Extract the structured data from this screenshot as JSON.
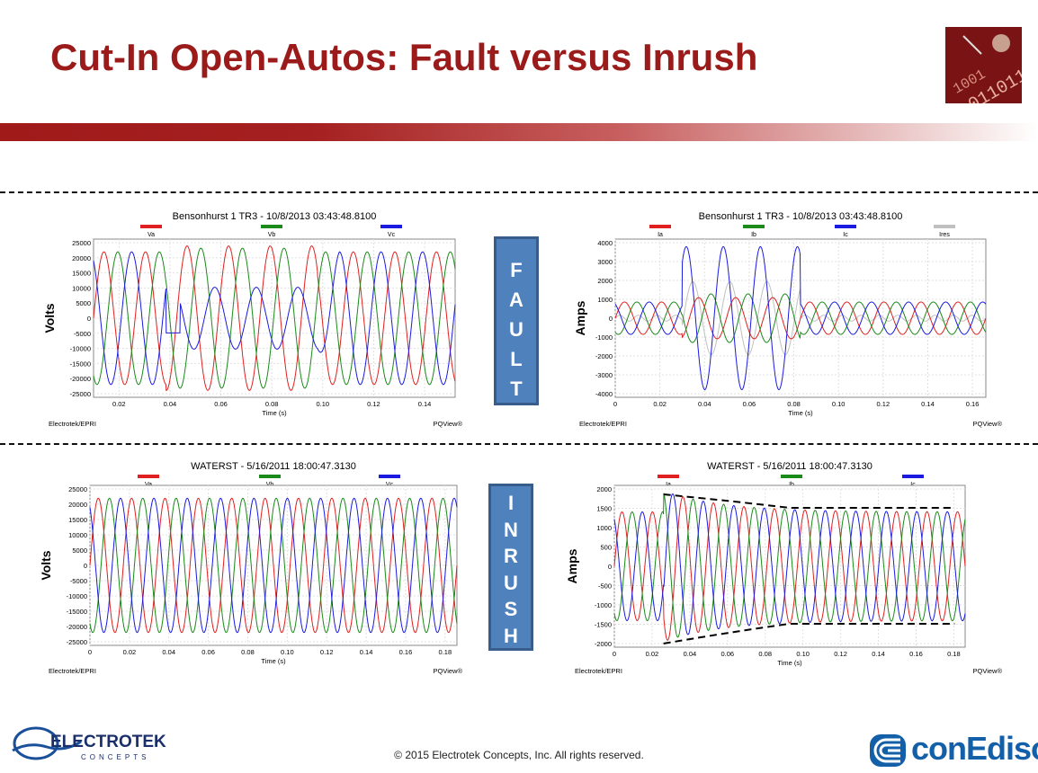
{
  "slide": {
    "title": "Cut-In Open-Autos: Fault versus Inrush",
    "badge_fault": [
      "F",
      "A",
      "U",
      "L",
      "T"
    ],
    "badge_inrush": [
      "I",
      "N",
      "R",
      "U",
      "S",
      "H"
    ],
    "copyright": "© 2015 Electrotek Concepts,  Inc. All rights reserved.",
    "logo_left_top": "ELECTROTEK",
    "logo_left_bottom": "CONCEPTS",
    "logo_right": "conEdison",
    "colors": {
      "title": "#9b1b1b",
      "badge": "#4f81bd",
      "phase_a": "#e02020",
      "phase_b": "#1a8a1a",
      "phase_c": "#1a1ae0",
      "residual": "#c0c0c0"
    }
  },
  "charts": [
    {
      "id": "fault-voltage",
      "title": "Bensonhurst 1 TR3 - 10/8/2013 03:43:48.8100",
      "ylabel": "Volts",
      "xlabel": "Time (s)",
      "source": "Electrotek/EPRI",
      "brand": "PQView®",
      "legend": [
        "Va",
        "Vb",
        "Vc"
      ],
      "xticks": [
        "0.02",
        "0.04",
        "0.06",
        "0.08",
        "0.10",
        "0.12",
        "0.14"
      ],
      "yticks": [
        "25000",
        "20000",
        "15000",
        "10000",
        "5000",
        "0",
        "-5000",
        "-10000",
        "-15000",
        "-20000",
        "-25000"
      ]
    },
    {
      "id": "fault-current",
      "title": "Bensonhurst 1 TR3 - 10/8/2013 03:43:48.8100",
      "ylabel": "Amps",
      "xlabel": "Time (s)",
      "source": "Electrotek/EPRI",
      "brand": "PQView®",
      "legend": [
        "Ia",
        "Ib",
        "Ic",
        "Ires"
      ],
      "xticks": [
        "0",
        "0.02",
        "0.04",
        "0.06",
        "0.08",
        "0.10",
        "0.12",
        "0.14",
        "0.16"
      ],
      "yticks": [
        "4000",
        "3000",
        "2000",
        "1000",
        "0",
        "-1000",
        "-2000",
        "-3000",
        "-4000"
      ]
    },
    {
      "id": "inrush-voltage",
      "title": "WATERST - 5/16/2011 18:00:47.3130",
      "ylabel": "Volts",
      "xlabel": "Time (s)",
      "source": "Electrotek/EPRI",
      "brand": "PQView®",
      "legend": [
        "Va",
        "Vb",
        "Vc"
      ],
      "xticks": [
        "0",
        "0.02",
        "0.04",
        "0.06",
        "0.08",
        "0.10",
        "0.12",
        "0.14",
        "0.16",
        "0.18"
      ],
      "yticks": [
        "25000",
        "20000",
        "15000",
        "10000",
        "5000",
        "0",
        "-5000",
        "-10000",
        "-15000",
        "-20000",
        "-25000"
      ]
    },
    {
      "id": "inrush-current",
      "title": "WATERST - 5/16/2011 18:00:47.3130",
      "ylabel": "Amps",
      "xlabel": "Time (s)",
      "source": "Electrotek/EPRI",
      "brand": "PQView®",
      "legend": [
        "Ia",
        "Ib",
        "Ic"
      ],
      "xticks": [
        "0",
        "0.02",
        "0.04",
        "0.06",
        "0.08",
        "0.10",
        "0.12",
        "0.14",
        "0.16",
        "0.18"
      ],
      "yticks": [
        "2000",
        "1500",
        "1000",
        "500",
        "0",
        "-500",
        "-1000",
        "-1500",
        "-2000"
      ]
    }
  ]
}
